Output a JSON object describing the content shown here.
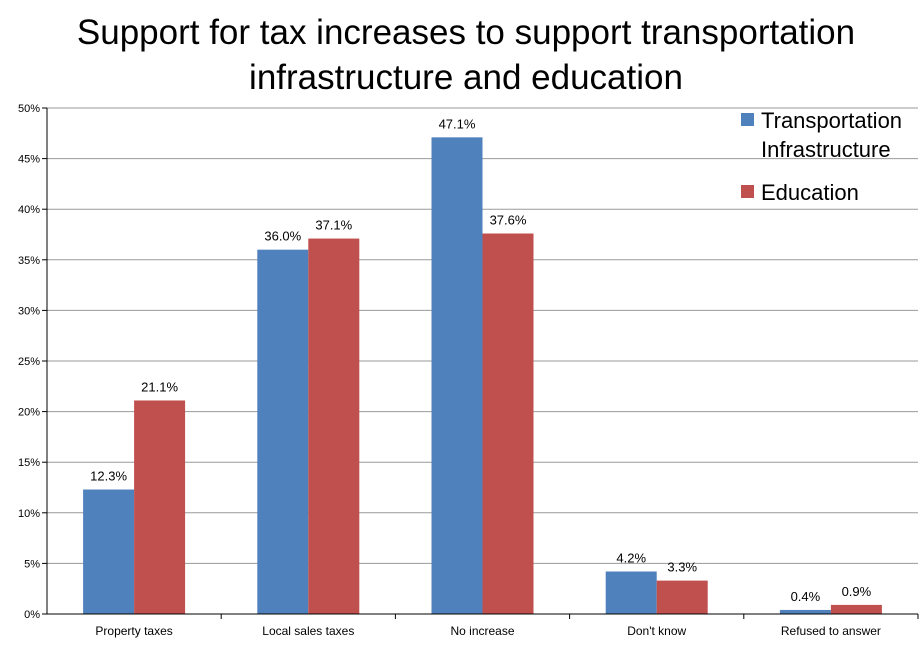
{
  "chart_data": {
    "type": "bar",
    "title": "Support for tax increases to support transportation infrastructure and education",
    "title_lines": [
      "Support for tax increases to support transportation",
      "infrastructure and education"
    ],
    "categories": [
      "Property taxes",
      "Local sales taxes",
      "No increase",
      "Don't know",
      "Refused to answer"
    ],
    "series": [
      {
        "name": "Transportation Infrastructure",
        "legend_lines": [
          "Transportation",
          "Infrastructure"
        ],
        "color": "#4F81BD",
        "values": [
          12.3,
          36.0,
          47.1,
          4.2,
          0.4
        ],
        "labels": [
          "12.3%",
          "36.0%",
          "47.1%",
          "4.2%",
          "0.4%"
        ]
      },
      {
        "name": "Education",
        "legend_lines": [
          "Education"
        ],
        "color": "#C0504D",
        "values": [
          21.1,
          37.1,
          37.6,
          3.3,
          0.9
        ],
        "labels": [
          "21.1%",
          "37.1%",
          "37.6%",
          "3.3%",
          "0.9%"
        ]
      }
    ],
    "ylim": [
      0,
      50
    ],
    "yticks": [
      0,
      5,
      10,
      15,
      20,
      25,
      30,
      35,
      40,
      45,
      50
    ],
    "ytick_labels": [
      "0%",
      "5%",
      "10%",
      "15%",
      "20%",
      "25%",
      "30%",
      "35%",
      "40%",
      "45%",
      "50%"
    ],
    "xlabel": "",
    "ylabel": "",
    "grid": true,
    "legend_position": "top-right",
    "gridline_color": "#9A9A9A"
  }
}
